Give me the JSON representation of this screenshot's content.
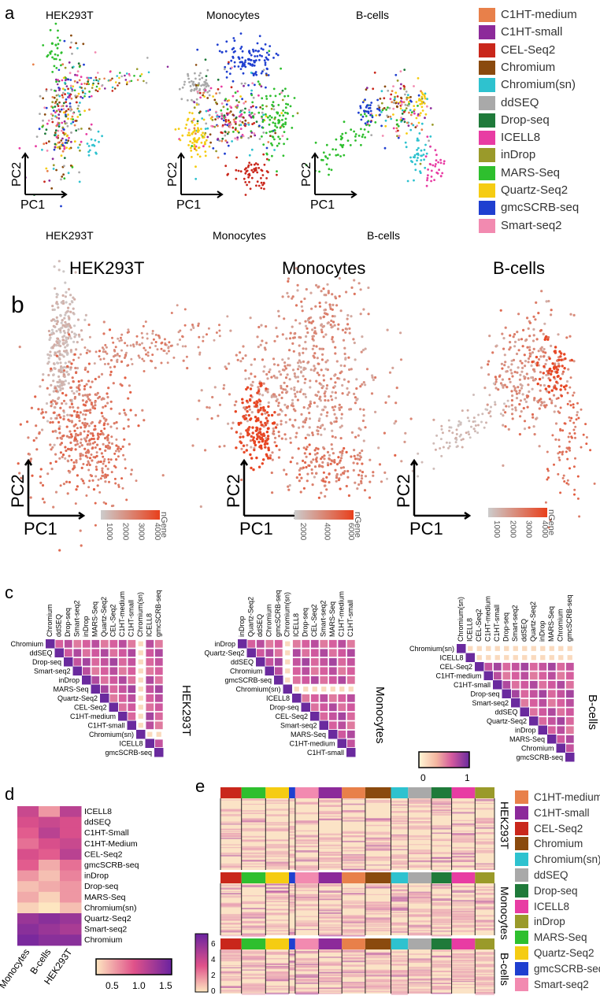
{
  "panel_letters": [
    "a",
    "b",
    "c",
    "d",
    "e"
  ],
  "cell_types": [
    "HEK293T",
    "Monocytes",
    "B-cells"
  ],
  "pc_labels": {
    "x": "PC1",
    "y": "PC2"
  },
  "methods": [
    {
      "name": "C1HT-medium",
      "color": "#e8804a"
    },
    {
      "name": "C1HT-small",
      "color": "#8c2a9a"
    },
    {
      "name": "CEL-Seq2",
      "color": "#c9271b"
    },
    {
      "name": "Chromium",
      "color": "#8a4a0e"
    },
    {
      "name": "Chromium(sn)",
      "color": "#2ec2cf"
    },
    {
      "name": "ddSEQ",
      "color": "#a9a9a9"
    },
    {
      "name": "Drop-seq",
      "color": "#1f7a3a"
    },
    {
      "name": "ICELL8",
      "color": "#e83ca3"
    },
    {
      "name": "inDrop",
      "color": "#9a9a2a"
    },
    {
      "name": "MARS-Seq",
      "color": "#2ebf2e"
    },
    {
      "name": "Quartz-Seq2",
      "color": "#f5cc12"
    },
    {
      "name": "gmcSCRB-seq",
      "color": "#1f3fd0"
    },
    {
      "name": "Smart-seq2",
      "color": "#f28ab0"
    }
  ],
  "panel_b": {
    "color_label": "nGene",
    "gradient": [
      "#cccccc",
      "#e8401c"
    ],
    "scales": [
      {
        "cell_type": "HEK293T",
        "ticks": [
          "1000",
          "2000",
          "3000",
          "4000"
        ]
      },
      {
        "cell_type": "Monocytes",
        "ticks": [
          "2000",
          "4000",
          "6000"
        ]
      },
      {
        "cell_type": "B-cells",
        "ticks": [
          "1000",
          "2000",
          "3000",
          "4000"
        ]
      }
    ]
  },
  "panel_c": {
    "scale_ticks": [
      "0",
      "1"
    ],
    "matrices": [
      {
        "cell_type": "HEK293T",
        "labels": [
          "Chromium",
          "ddSEQ",
          "Drop-seq",
          "Smart-seq2",
          "inDrop",
          "MARS-Seq",
          "Quartz-Seq2",
          "CEL-Seq2",
          "C1HT-medium",
          "C1HT-small",
          "Chromium(sn)",
          "ICELL8",
          "gmcSCRB-seq"
        ],
        "light": [
          "Chromium(sn)"
        ]
      },
      {
        "cell_type": "Monocytes",
        "labels": [
          "inDrop",
          "Quartz-Seq2",
          "ddSEQ",
          "Chromium",
          "gmcSCRB-seq",
          "Chromium(sn)",
          "ICELL8",
          "Drop-seq",
          "CEL-Seq2",
          "Smart-seq2",
          "MARS-Seq",
          "C1HT-medium",
          "C1HT-small"
        ],
        "light": [
          "Chromium(sn)"
        ]
      },
      {
        "cell_type": "B-cells",
        "labels": [
          "Chromium(sn)",
          "ICELL8",
          "CEL-Seq2",
          "C1HT-medium",
          "C1HT-small",
          "Drop-seq",
          "Smart-seq2",
          "ddSEQ",
          "Quartz-Seq2",
          "inDrop",
          "MARS-Seq",
          "Chromium",
          "gmcSCRB-seq"
        ],
        "light": [
          "Chromium(sn)",
          "ICELL8"
        ]
      }
    ]
  },
  "panel_d": {
    "rows": [
      "ICELL8",
      "ddSEQ",
      "C1HT-Small",
      "C1HT-Medium",
      "CEL-Seq2",
      "gmcSCRB-seq",
      "inDrop",
      "Drop-seq",
      "MARS-Seq",
      "Chromium(sn)",
      "Quartz-Seq2",
      "Smart-seq2",
      "Chromium"
    ],
    "columns": [
      "Monocytes",
      "B-cells",
      "HEK293T"
    ],
    "values": [
      [
        1.1,
        0.6,
        1.2
      ],
      [
        1.0,
        1.1,
        1.0
      ],
      [
        0.9,
        1.2,
        1.0
      ],
      [
        0.8,
        1.0,
        1.1
      ],
      [
        1.0,
        0.9,
        1.2
      ],
      [
        0.9,
        0.5,
        0.8
      ],
      [
        0.6,
        0.4,
        0.7
      ],
      [
        0.4,
        0.5,
        0.6
      ],
      [
        0.5,
        0.3,
        0.6
      ],
      [
        0.3,
        0.2,
        0.4
      ],
      [
        1.4,
        1.5,
        1.4
      ],
      [
        1.5,
        1.4,
        1.3
      ],
      [
        1.6,
        1.5,
        1.5
      ]
    ],
    "scale_ticks": [
      "0.5",
      "1.0",
      "1.5"
    ]
  },
  "panel_e": {
    "scale_ticks": [
      "0",
      "2",
      "4",
      "6"
    ],
    "blocks": [
      {
        "cell_type": "HEK293T",
        "order": [
          "CEL-Seq2",
          "MARS-Seq",
          "Quartz-Seq2",
          "gmcSCRB-seq",
          "Smart-seq2",
          "C1HT-small",
          "C1HT-medium",
          "Chromium",
          "Chromium(sn)",
          "ddSEQ",
          "Drop-seq",
          "ICELL8",
          "inDrop"
        ]
      },
      {
        "cell_type": "Monocytes",
        "order": [
          "CEL-Seq2",
          "MARS-Seq",
          "Quartz-Seq2",
          "gmcSCRB-seq",
          "Smart-seq2",
          "C1HT-small",
          "C1HT-medium",
          "Chromium",
          "Chromium(sn)",
          "ddSEQ",
          "Drop-seq",
          "ICELL8",
          "inDrop"
        ]
      },
      {
        "cell_type": "B-cells",
        "order": [
          "CEL-Seq2",
          "MARS-Seq",
          "Quartz-Seq2",
          "gmcSCRB-seq",
          "Smart-seq2",
          "C1HT-small",
          "C1HT-medium",
          "Chromium",
          "Chromium(sn)",
          "ddSEQ",
          "Drop-seq",
          "ICELL8",
          "inDrop"
        ]
      }
    ]
  }
}
